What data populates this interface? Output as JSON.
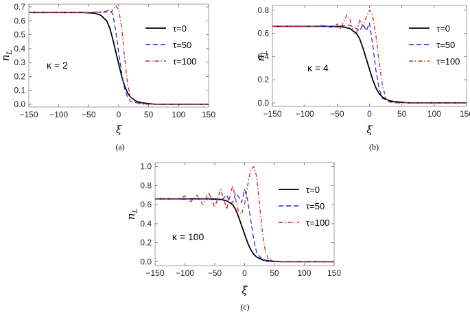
{
  "figure": {
    "legend_labels": [
      "τ=0",
      "τ=50",
      "τ=100"
    ],
    "series_colors": [
      "#000000",
      "#1f2bd6",
      "#d61f1f"
    ]
  },
  "chart_data": [
    {
      "type": "line",
      "panel": "(a)",
      "kappa_label": "κ = 2",
      "xlabel": "ξ",
      "ylabel": "n_L",
      "xlim": [
        -150,
        150
      ],
      "ylim": [
        -0.02,
        0.72
      ],
      "xticks": [
        -150,
        -100,
        -50,
        0,
        50,
        100,
        150
      ],
      "yticks": [
        0.0,
        0.1,
        0.2,
        0.3,
        0.4,
        0.5,
        0.6,
        0.7
      ],
      "ytick_labels": [
        "0.0",
        "0.1",
        "0.2",
        "0.3",
        "0.4",
        "0.5",
        "0.6",
        "0.7"
      ],
      "legend_position": "top-right",
      "series": [
        {
          "name": "τ=0",
          "style": "solid",
          "x": [
            -150,
            -60,
            -40,
            -30,
            -20,
            -15,
            -10,
            -5,
            0,
            5,
            10,
            15,
            20,
            30,
            40,
            60,
            100,
            150
          ],
          "y": [
            0.66,
            0.66,
            0.655,
            0.64,
            0.6,
            0.55,
            0.47,
            0.38,
            0.29,
            0.2,
            0.13,
            0.08,
            0.05,
            0.02,
            0.01,
            0.0,
            0.0,
            0.0
          ]
        },
        {
          "name": "τ=50",
          "style": "dashed",
          "x": [
            -150,
            -50,
            -30,
            -20,
            -15,
            -10,
            -5,
            0,
            5,
            10,
            15,
            20,
            30,
            40,
            60,
            100,
            150
          ],
          "y": [
            0.66,
            0.66,
            0.662,
            0.67,
            0.68,
            0.65,
            0.53,
            0.37,
            0.22,
            0.11,
            0.05,
            0.02,
            0.01,
            0.005,
            0.0,
            0.0,
            0.0
          ]
        },
        {
          "name": "τ=100",
          "style": "dashdot",
          "x": [
            -150,
            -50,
            -30,
            -20,
            -15,
            -10,
            -5,
            0,
            5,
            10,
            15,
            20,
            30,
            40,
            60,
            100,
            150
          ],
          "y": [
            0.66,
            0.66,
            0.665,
            0.66,
            0.645,
            0.68,
            0.71,
            0.68,
            0.55,
            0.33,
            0.14,
            0.05,
            0.01,
            0.0,
            0.0,
            0.0,
            0.0
          ]
        }
      ]
    },
    {
      "type": "line",
      "panel": "(b)",
      "kappa_label": "κ = 4",
      "xlabel": "ξ",
      "ylabel": "n_L",
      "xlim": [
        -150,
        150
      ],
      "ylim": [
        -0.03,
        0.84
      ],
      "xticks": [
        -150,
        -100,
        -50,
        0,
        50,
        100,
        150
      ],
      "yticks": [
        0.0,
        0.2,
        0.4,
        0.6,
        0.8
      ],
      "ytick_labels": [
        "0.0",
        "0.2",
        "0.4",
        "0.6",
        "0.8"
      ],
      "legend_position": "top-right",
      "series": [
        {
          "name": "τ=0",
          "style": "solid",
          "x": [
            -150,
            -60,
            -40,
            -30,
            -20,
            -15,
            -10,
            -5,
            0,
            5,
            10,
            15,
            20,
            30,
            40,
            60,
            100,
            150
          ],
          "y": [
            0.66,
            0.66,
            0.655,
            0.64,
            0.6,
            0.55,
            0.47,
            0.38,
            0.29,
            0.2,
            0.13,
            0.08,
            0.05,
            0.02,
            0.01,
            0.0,
            0.0,
            0.0
          ]
        },
        {
          "name": "τ=50",
          "style": "dashed",
          "x": [
            -150,
            -60,
            -40,
            -30,
            -20,
            -15,
            -10,
            -5,
            0,
            5,
            10,
            15,
            20,
            30,
            40,
            60,
            100,
            150
          ],
          "y": [
            0.66,
            0.66,
            0.665,
            0.67,
            0.64,
            0.62,
            0.68,
            0.62,
            0.69,
            0.5,
            0.28,
            0.12,
            0.04,
            0.01,
            0.0,
            0.0,
            0.0,
            0.0
          ]
        },
        {
          "name": "τ=100",
          "style": "dashdot",
          "x": [
            -150,
            -80,
            -70,
            -60,
            -50,
            -45,
            -40,
            -35,
            -30,
            -25,
            -20,
            -15,
            -10,
            -5,
            0,
            5,
            10,
            15,
            20,
            25,
            30,
            40,
            60,
            100,
            150
          ],
          "y": [
            0.66,
            0.66,
            0.67,
            0.65,
            0.68,
            0.64,
            0.7,
            0.76,
            0.72,
            0.6,
            0.6,
            0.72,
            0.66,
            0.74,
            0.8,
            0.75,
            0.58,
            0.35,
            0.15,
            0.05,
            0.01,
            0.0,
            0.0,
            0.0,
            0.0
          ]
        }
      ]
    },
    {
      "type": "line",
      "panel": "(c)",
      "kappa_label": "κ = 100",
      "xlabel": "ξ",
      "ylabel": "n_L",
      "xlim": [
        -150,
        150
      ],
      "ylim": [
        -0.04,
        1.04
      ],
      "xticks": [
        -150,
        -100,
        -50,
        0,
        50,
        100,
        150
      ],
      "yticks": [
        0.0,
        0.2,
        0.4,
        0.6,
        0.8,
        1.0
      ],
      "ytick_labels": [
        "0.0",
        "0.2",
        "0.4",
        "0.6",
        "0.8",
        "1.0"
      ],
      "legend_position": "top-right",
      "series": [
        {
          "name": "τ=0",
          "style": "solid",
          "x": [
            -150,
            -60,
            -40,
            -30,
            -20,
            -15,
            -10,
            -5,
            0,
            5,
            10,
            15,
            20,
            30,
            40,
            60,
            100,
            150
          ],
          "y": [
            0.66,
            0.66,
            0.655,
            0.64,
            0.6,
            0.55,
            0.47,
            0.38,
            0.29,
            0.2,
            0.13,
            0.08,
            0.05,
            0.02,
            0.01,
            0.0,
            0.0,
            0.0
          ]
        },
        {
          "name": "τ=50",
          "style": "dashed",
          "x": [
            -150,
            -60,
            -50,
            -40,
            -30,
            -25,
            -20,
            -15,
            -10,
            -5,
            0,
            5,
            10,
            15,
            20,
            30,
            40,
            60,
            100,
            150
          ],
          "y": [
            0.66,
            0.66,
            0.67,
            0.64,
            0.7,
            0.62,
            0.62,
            0.72,
            0.68,
            0.62,
            0.76,
            0.65,
            0.45,
            0.24,
            0.1,
            0.02,
            0.0,
            0.0,
            0.0,
            0.0
          ]
        },
        {
          "name": "τ=100",
          "style": "dashdot",
          "x": [
            -150,
            -110,
            -100,
            -90,
            -80,
            -70,
            -60,
            -50,
            -40,
            -30,
            -20,
            -10,
            -5,
            0,
            5,
            10,
            15,
            20,
            25,
            30,
            35,
            40,
            50,
            60,
            100,
            150
          ],
          "y": [
            0.66,
            0.66,
            0.69,
            0.63,
            0.7,
            0.6,
            0.73,
            0.57,
            0.76,
            0.55,
            0.8,
            0.52,
            0.5,
            0.6,
            0.8,
            0.96,
            1.0,
            0.9,
            0.6,
            0.3,
            0.1,
            0.03,
            0.0,
            0.0,
            0.0,
            0.0
          ]
        }
      ]
    }
  ]
}
